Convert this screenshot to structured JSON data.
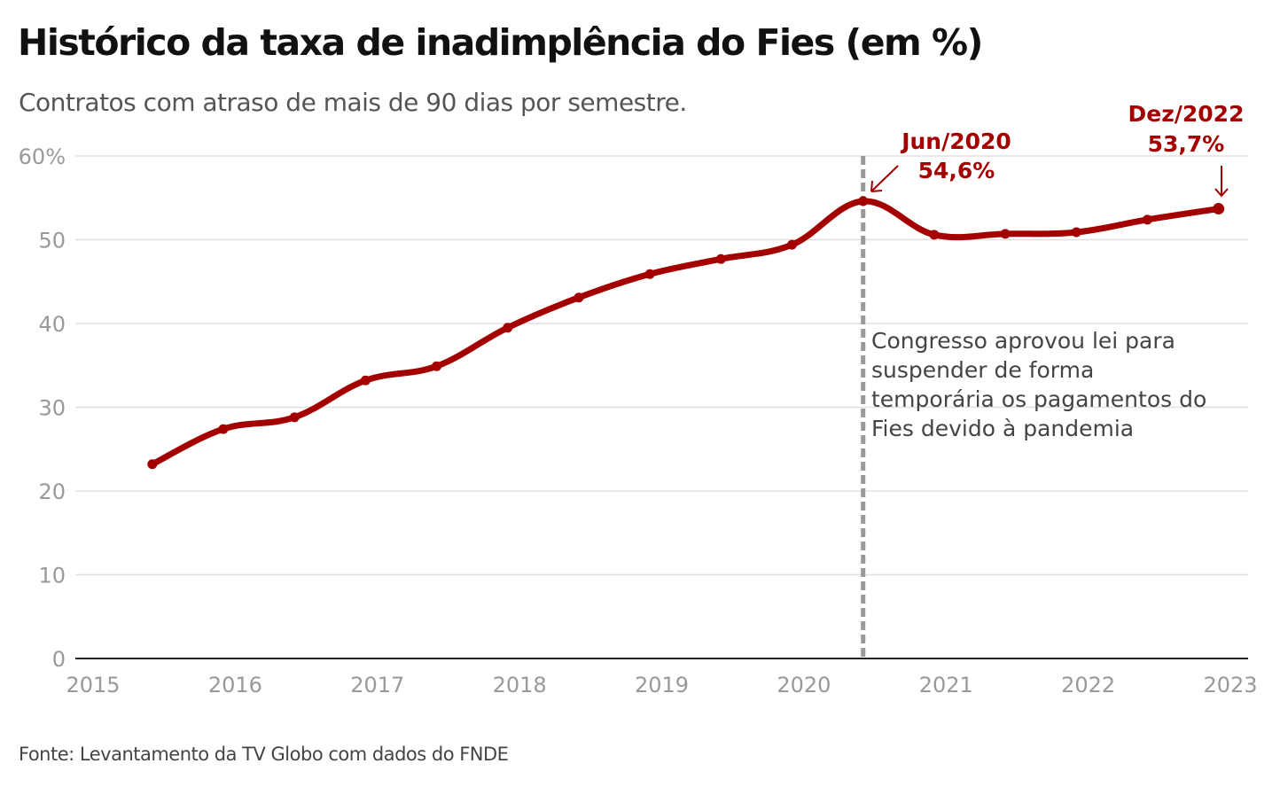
{
  "title": "Histórico da taxa de inadimplência do Fies (em %)",
  "subtitle": "Contratos com atraso de mais de 90 dias por semestre.",
  "source": "Fonte: Levantamento da TV Globo com dados do FNDE",
  "colors": {
    "line": "#a50000",
    "grid": "#e0e0e0",
    "event_line": "#999999"
  },
  "chart_data": {
    "type": "line",
    "x": [
      "2015-06",
      "2015-12",
      "2016-06",
      "2016-12",
      "2017-06",
      "2017-12",
      "2018-06",
      "2018-12",
      "2019-06",
      "2019-12",
      "2020-06",
      "2020-12",
      "2021-06",
      "2021-12",
      "2022-06",
      "2022-12"
    ],
    "values": [
      23.2,
      27.4,
      28.8,
      33.2,
      34.9,
      39.5,
      43.1,
      45.9,
      47.7,
      49.4,
      54.6,
      50.6,
      50.7,
      50.9,
      52.4,
      53.7
    ],
    "ylim": [
      0,
      60
    ],
    "yticks": [
      "0",
      "10",
      "20",
      "30",
      "40",
      "50",
      "60%"
    ],
    "xticks": [
      "2015",
      "2016",
      "2017",
      "2018",
      "2019",
      "2020",
      "2021",
      "2022",
      "2023"
    ],
    "grid": true,
    "event": {
      "x": "2020-06",
      "text": [
        "Congresso aprovou lei para",
        "suspender de forma",
        "temporária os pagamentos do",
        "Fies devido à pandemia"
      ]
    },
    "highlights": [
      {
        "label": "Jun/2020",
        "value": "54,6%"
      },
      {
        "label": "Dez/2022",
        "value": "53,7%"
      }
    ]
  }
}
